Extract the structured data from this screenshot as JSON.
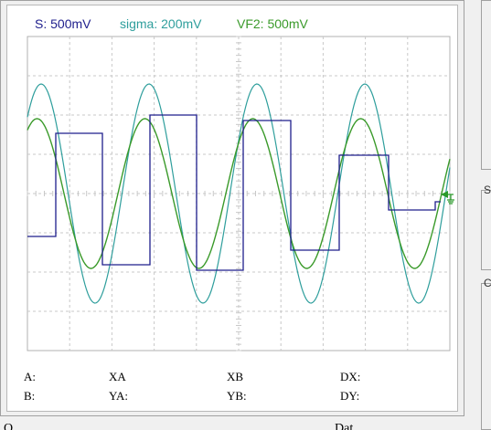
{
  "channels": [
    {
      "label": "S: 500mV",
      "color": "#1e1e8c"
    },
    {
      "label": "sigma: 200mV",
      "color": "#2e9e9c"
    },
    {
      "label": "VF2: 500mV",
      "color": "#3a9a2a"
    }
  ],
  "cursor_readouts": {
    "a": "A:",
    "b": "B:",
    "xa": "XA",
    "ya": "YA:",
    "xb": "XB",
    "yb": "YB:",
    "dx": "DX:",
    "dy": "DY:"
  },
  "bottom_cut_labels": {
    "left": "O",
    "right": "Dat"
  },
  "side_panel_glyphs": {
    "top": "S",
    "bottom": "C"
  },
  "colors": {
    "grid": "#c8c8c8",
    "screen_bg": "#ffffff",
    "trigger_marker": "#2a9a2a"
  },
  "trigger_marker": {
    "icon": "trigger-ground-marker"
  }
}
